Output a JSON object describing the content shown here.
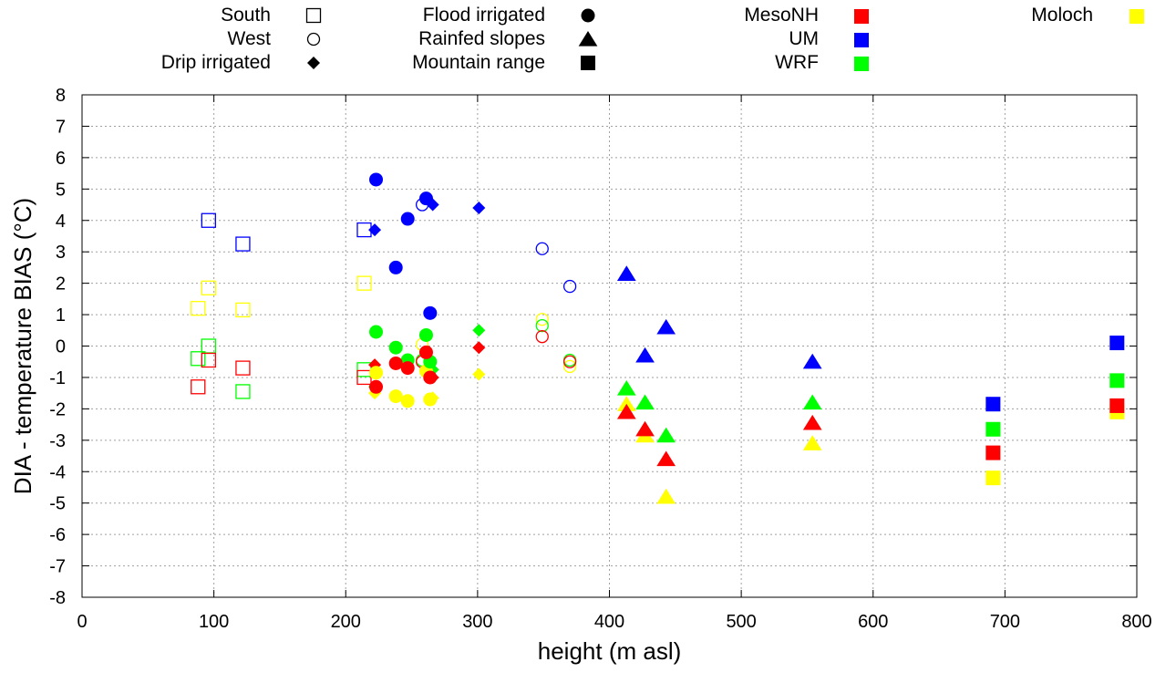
{
  "chart_data": {
    "type": "scatter",
    "title": "",
    "xlabel": "height (m asl)",
    "ylabel": "DIA - temperature BIAS (°C)",
    "xlim": [
      0,
      800
    ],
    "ylim": [
      -8,
      8
    ],
    "xticks": [
      0,
      100,
      200,
      300,
      400,
      500,
      600,
      700,
      800
    ],
    "yticks": [
      8,
      7,
      6,
      5,
      4,
      3,
      2,
      1,
      0,
      -1,
      -2,
      -3,
      -4,
      -5,
      -6,
      -7,
      -8
    ],
    "grid": true,
    "legend_location": "top, outside plot area",
    "colors": {
      "MesoNH": "#ff0000",
      "UM": "#0000ff",
      "WRF": "#00ff00",
      "Moloch": "#ffff00"
    },
    "legend_shapes": [
      {
        "label": "South",
        "shape": "square",
        "fill": "open"
      },
      {
        "label": "West",
        "shape": "circle",
        "fill": "open"
      },
      {
        "label": "Drip irrigated",
        "shape": "diamond",
        "fill": "filled"
      },
      {
        "label": "Flood irrigated",
        "shape": "circle",
        "fill": "filled"
      },
      {
        "label": "Rainfed slopes",
        "shape": "triangle",
        "fill": "filled"
      },
      {
        "label": "Mountain range",
        "shape": "square",
        "fill": "filled"
      }
    ],
    "legend_models": [
      "MesoNH",
      "UM",
      "WRF",
      "Moloch"
    ],
    "series": [
      {
        "name": "South",
        "shape": "square",
        "fill": "open",
        "points": {
          "UM": [
            [
              96,
              4.0
            ],
            [
              122,
              3.25
            ],
            [
              214,
              3.7
            ]
          ],
          "Moloch": [
            [
              88,
              1.2
            ],
            [
              96,
              1.85
            ],
            [
              122,
              1.15
            ],
            [
              214,
              2.0
            ]
          ],
          "WRF": [
            [
              88,
              -0.4
            ],
            [
              96,
              0.0
            ],
            [
              122,
              -1.45
            ],
            [
              214,
              -0.75
            ]
          ],
          "MesoNH": [
            [
              88,
              -1.3
            ],
            [
              96,
              -0.45
            ],
            [
              122,
              -0.7
            ],
            [
              214,
              -1.0
            ]
          ]
        }
      },
      {
        "name": "West",
        "shape": "circle",
        "fill": "open",
        "points": {
          "UM": [
            [
              258,
              4.5
            ],
            [
              349,
              3.1
            ],
            [
              370,
              1.9
            ]
          ],
          "Moloch": [
            [
              258,
              0.05
            ],
            [
              349,
              0.85
            ],
            [
              370,
              -0.65
            ]
          ],
          "WRF": [
            [
              258,
              -0.45
            ],
            [
              349,
              0.65
            ],
            [
              370,
              -0.45
            ]
          ],
          "MesoNH": [
            [
              258,
              -0.5
            ],
            [
              349,
              0.3
            ],
            [
              370,
              -0.5
            ]
          ]
        }
      },
      {
        "name": "Drip irrigated",
        "shape": "diamond",
        "fill": "filled",
        "points": {
          "UM": [
            [
              222,
              3.7
            ],
            [
              266,
              4.5
            ],
            [
              301,
              4.4
            ]
          ],
          "Moloch": [
            [
              222,
              -1.5
            ],
            [
              266,
              -1.65
            ],
            [
              301,
              -0.9
            ]
          ],
          "WRF": [
            [
              222,
              -1.3
            ],
            [
              266,
              -0.75
            ],
            [
              301,
              0.5
            ]
          ],
          "MesoNH": [
            [
              222,
              -0.6
            ],
            [
              266,
              -1.0
            ],
            [
              301,
              -0.05
            ]
          ]
        }
      },
      {
        "name": "Flood irrigated",
        "shape": "circle",
        "fill": "filled",
        "points": {
          "UM": [
            [
              223,
              5.3
            ],
            [
              238,
              2.5
            ],
            [
              247,
              4.05
            ],
            [
              261,
              4.7
            ],
            [
              264,
              1.05
            ]
          ],
          "Moloch": [
            [
              223,
              -0.85
            ],
            [
              238,
              -1.6
            ],
            [
              247,
              -1.75
            ],
            [
              261,
              -0.8
            ],
            [
              264,
              -1.7
            ]
          ],
          "WRF": [
            [
              223,
              0.45
            ],
            [
              238,
              -0.05
            ],
            [
              247,
              -0.45
            ],
            [
              261,
              0.35
            ],
            [
              264,
              -0.5
            ]
          ],
          "MesoNH": [
            [
              223,
              -1.3
            ],
            [
              238,
              -0.55
            ],
            [
              247,
              -0.7
            ],
            [
              261,
              -0.2
            ],
            [
              264,
              -1.0
            ]
          ]
        }
      },
      {
        "name": "Rainfed slopes",
        "shape": "triangle",
        "fill": "filled",
        "points": {
          "UM": [
            [
              413,
              2.3
            ],
            [
              427,
              -0.3
            ],
            [
              443,
              0.6
            ],
            [
              554,
              -0.5
            ]
          ],
          "Moloch": [
            [
              413,
              -1.85
            ],
            [
              427,
              -2.85
            ],
            [
              443,
              -4.8
            ],
            [
              554,
              -3.1
            ]
          ],
          "WRF": [
            [
              413,
              -1.35
            ],
            [
              427,
              -1.8
            ],
            [
              443,
              -2.85
            ],
            [
              554,
              -1.8
            ]
          ],
          "MesoNH": [
            [
              413,
              -2.1
            ],
            [
              427,
              -2.65
            ],
            [
              443,
              -3.6
            ],
            [
              554,
              -2.45
            ]
          ]
        }
      },
      {
        "name": "Mountain range",
        "shape": "square",
        "fill": "filled",
        "points": {
          "UM": [
            [
              691,
              -1.85
            ],
            [
              785,
              0.1
            ]
          ],
          "Moloch": [
            [
              691,
              -4.2
            ],
            [
              785,
              -2.1
            ]
          ],
          "WRF": [
            [
              691,
              -2.65
            ],
            [
              785,
              -1.1
            ]
          ],
          "MesoNH": [
            [
              691,
              -3.4
            ],
            [
              785,
              -1.9
            ]
          ]
        }
      }
    ]
  }
}
